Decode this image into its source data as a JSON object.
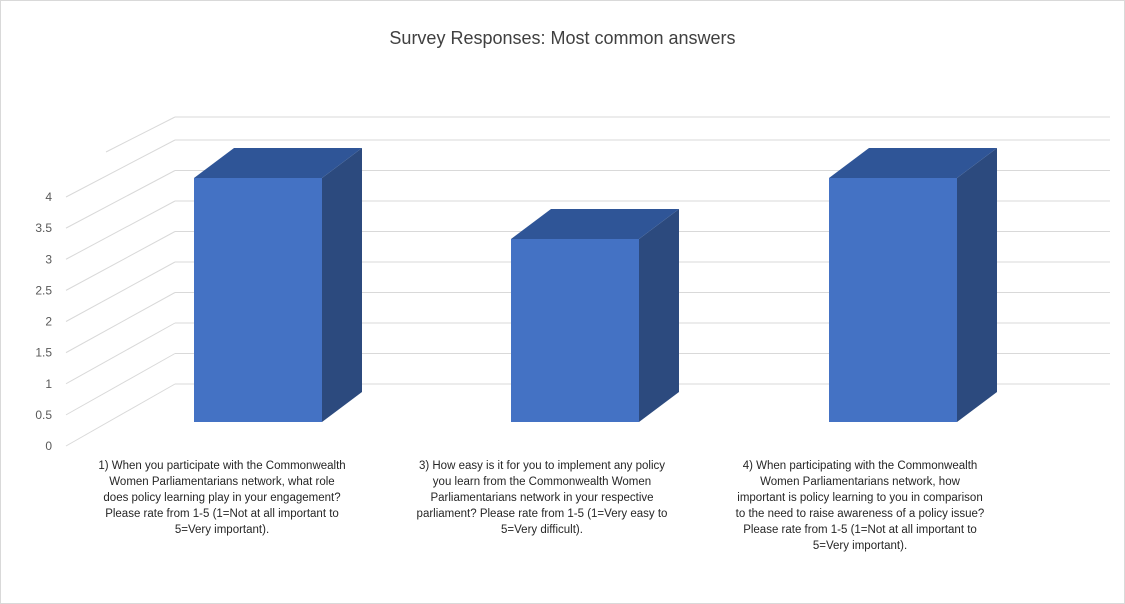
{
  "chart_data": {
    "type": "bar",
    "title": "Survey Responses: Most common answers",
    "xlabel": "",
    "ylabel": "",
    "ylim": [
      0,
      4
    ],
    "yticks": [
      "0",
      "0.5",
      "1",
      "1.5",
      "2",
      "2.5",
      "3",
      "3.5",
      "4"
    ],
    "grid": true,
    "three_d": true,
    "categories": [
      "1) When you participate with the Commonwealth Women Parliamentarians network, what role does policy learning play in your engagement? Please rate from 1-5 (1=Not at all important to 5=Very important).",
      "3) How easy is it for you to implement any policy you learn from the Commonwealth Women Parliamentarians network in your respective parliament? Please rate from 1-5 (1=Very easy to 5=Very difficult).",
      "4) When participating with the Commonwealth Women Parliamentarians network, how important is policy learning to you in comparison to the need to raise awareness of a policy issue? Please rate from 1-5 (1=Not at all important to 5=Very important)."
    ],
    "category_lines": [
      [
        "1) When you participate with the Commonwealth",
        "Women Parliamentarians network, what role",
        "does policy learning play in your engagement?",
        "Please rate from 1-5 (1=Not at all important to",
        "5=Very important)."
      ],
      [
        "3) How easy is it for you to implement any policy",
        "you learn from the Commonwealth Women",
        "Parliamentarians network in your respective",
        "parliament? Please rate from 1-5 (1=Very easy to",
        "5=Very difficult)."
      ],
      [
        "4) When participating with the Commonwealth",
        "Women Parliamentarians network, how",
        "important is policy learning to you in comparison",
        "to the need to raise awareness of a policy issue?",
        "Please rate from 1-5 (1=Not at all important to",
        "5=Very important)."
      ]
    ],
    "values": [
      4,
      3,
      4
    ],
    "colors": {
      "front": "#4472c4",
      "side": "#2c4a7e",
      "top": "#2f5597"
    }
  }
}
